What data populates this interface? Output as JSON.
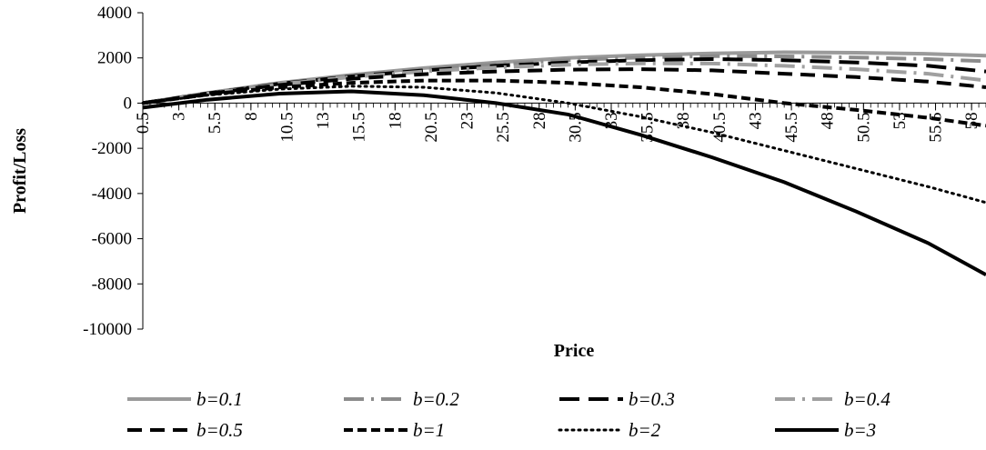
{
  "chart_data": {
    "type": "line",
    "title": "",
    "xlabel": "Price",
    "ylabel": "Profit/Loss",
    "ylim": [
      -10000,
      4000
    ],
    "yticks": [
      4000,
      2000,
      0,
      -2000,
      -4000,
      -6000,
      -8000,
      -10000
    ],
    "xlim": [
      0.5,
      59.0
    ],
    "x_tick_labels": [
      "0.5",
      "3",
      "5.5",
      "8",
      "10.5",
      "13",
      "15.5",
      "18",
      "20.5",
      "23",
      "25.5",
      "28",
      "30.5",
      "33",
      "35.5",
      "38",
      "40.5",
      "43",
      "45.5",
      "48",
      "50.5",
      "53",
      "55.5",
      "58"
    ],
    "grid": false,
    "legend_position": "bottom",
    "series": [
      {
        "name": "b=0.1",
        "color": "#9a9a9a",
        "dash": "solid",
        "x": [
          0.5,
          5,
          10,
          15,
          20,
          25,
          30,
          35,
          40,
          45,
          50,
          55,
          59
        ],
        "y": [
          0,
          450,
          900,
          1250,
          1550,
          1800,
          2000,
          2120,
          2200,
          2250,
          2230,
          2180,
          2100
        ]
      },
      {
        "name": "b=0.2",
        "color": "#8c8c8c",
        "dash": "dash-dot",
        "x": [
          0.5,
          5,
          10,
          15,
          20,
          25,
          30,
          35,
          40,
          45,
          50,
          55,
          59
        ],
        "y": [
          0,
          440,
          880,
          1220,
          1500,
          1720,
          1900,
          2020,
          2080,
          2070,
          2020,
          1950,
          1850
        ]
      },
      {
        "name": "b=0.3",
        "color": "#000000",
        "dash": "long-dash",
        "x": [
          0.5,
          5,
          10,
          15,
          20,
          25,
          30,
          35,
          40,
          45,
          50,
          55,
          59
        ],
        "y": [
          0,
          430,
          860,
          1180,
          1450,
          1650,
          1800,
          1900,
          1950,
          1900,
          1800,
          1650,
          1400
        ]
      },
      {
        "name": "b=0.4",
        "color": "#a0a0a0",
        "dash": "dash-dot",
        "x": [
          0.5,
          5,
          10,
          15,
          20,
          25,
          30,
          35,
          40,
          45,
          50,
          55,
          59
        ],
        "y": [
          0,
          420,
          840,
          1150,
          1400,
          1580,
          1700,
          1760,
          1750,
          1650,
          1500,
          1300,
          1000
        ]
      },
      {
        "name": "b=0.5",
        "color": "#000000",
        "dash": "dash",
        "x": [
          0.5,
          5,
          10,
          15,
          20,
          25,
          30,
          35,
          40,
          45,
          50,
          55,
          59
        ],
        "y": [
          0,
          410,
          800,
          1080,
          1280,
          1400,
          1480,
          1500,
          1450,
          1300,
          1150,
          950,
          700
        ]
      },
      {
        "name": "b=1",
        "color": "#000000",
        "dash": "short-dash",
        "x": [
          0.5,
          5,
          10,
          15,
          20,
          25,
          30,
          35,
          40,
          45,
          50,
          55,
          59
        ],
        "y": [
          0,
          380,
          700,
          900,
          1000,
          1000,
          900,
          700,
          400,
          0,
          -300,
          -650,
          -1000
        ]
      },
      {
        "name": "b=2",
        "color": "#000000",
        "dash": "dot",
        "x": [
          0.5,
          5,
          10,
          15,
          20,
          25,
          30,
          35,
          40,
          45,
          50,
          55,
          59
        ],
        "y": [
          0,
          350,
          620,
          750,
          700,
          450,
          0,
          -600,
          -1300,
          -2100,
          -2900,
          -3700,
          -4400
        ]
      },
      {
        "name": "b=3",
        "color": "#000000",
        "dash": "solid",
        "x": [
          0.5,
          5,
          10,
          15,
          20,
          25,
          30,
          35,
          40,
          45,
          50,
          55,
          59
        ],
        "y": [
          -200,
          150,
          420,
          520,
          350,
          0,
          -500,
          -1400,
          -2400,
          -3500,
          -4800,
          -6200,
          -7600
        ]
      }
    ]
  }
}
